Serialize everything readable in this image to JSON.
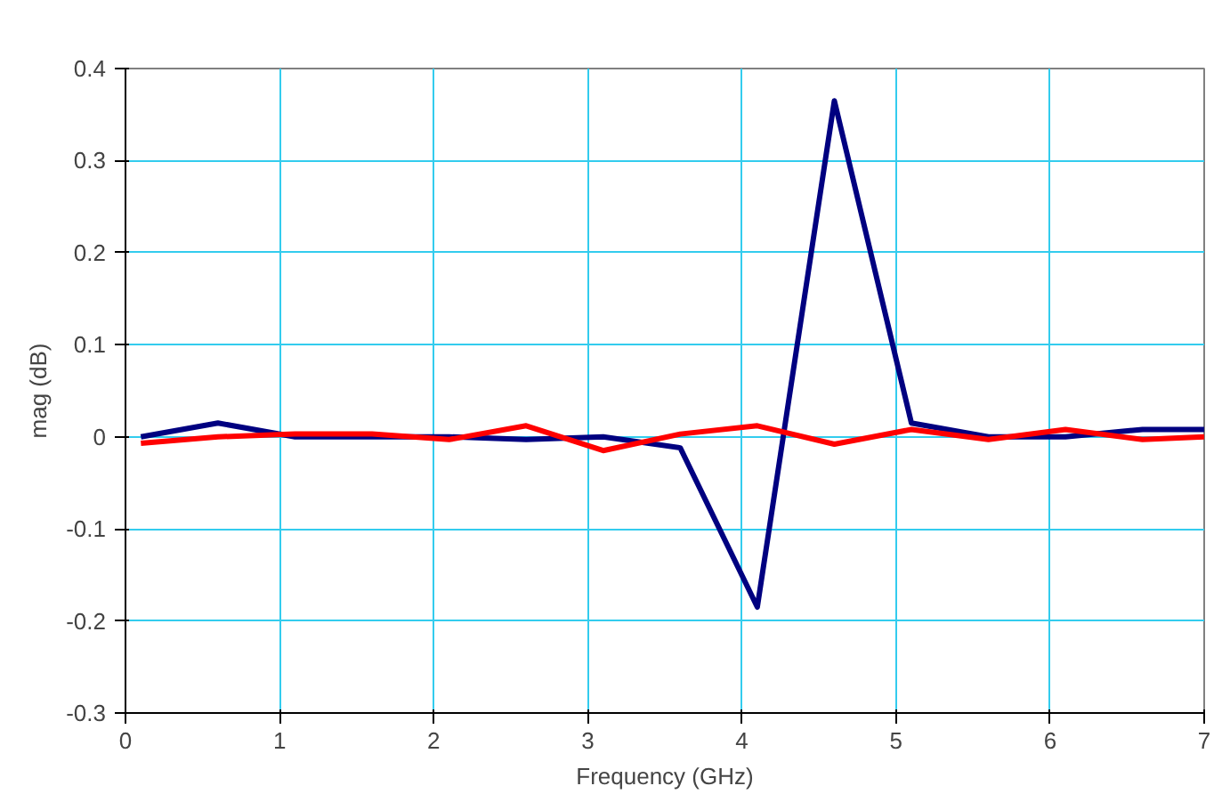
{
  "chart_data": {
    "type": "line",
    "xlabel": "Frequency (GHz)",
    "ylabel": "mag (dB)",
    "x": [
      0.1,
      0.6,
      1.1,
      1.6,
      2.1,
      2.6,
      3.1,
      3.6,
      4.1,
      4.6,
      5.1,
      5.6,
      6.1,
      6.6,
      7.0
    ],
    "series": [
      {
        "color": "#000080",
        "values": [
          0,
          0.015,
          0,
          0,
          0,
          -0.003,
          0,
          -0.012,
          -0.185,
          0.365,
          0.015,
          0,
          0,
          0.008,
          0.008
        ]
      },
      {
        "color": "#ff0000",
        "values": [
          -0.007,
          0,
          0.003,
          0.003,
          -0.003,
          0.012,
          -0.015,
          0.003,
          0.012,
          -0.008,
          0.008,
          -0.003,
          0.008,
          -0.003,
          0
        ]
      }
    ],
    "xlim": [
      0,
      7
    ],
    "ylim": [
      -0.3,
      0.4
    ],
    "xticks": [
      0,
      1,
      2,
      3,
      4,
      5,
      6,
      7
    ],
    "yticks": [
      {
        "value": -0.3,
        "label": "-0.3"
      },
      {
        "value": -0.2,
        "label": "-0.2"
      },
      {
        "value": -0.1,
        "label": "-0.1"
      },
      0,
      {
        "value": 0.1,
        "label": "0.1"
      },
      {
        "value": 0.2,
        "label": "0.2"
      },
      {
        "value": 0.3,
        "label": "0.3"
      },
      {
        "value": 0.4,
        "label": "0.4"
      }
    ],
    "grid": true,
    "marker": "none",
    "line_style": "solid"
  }
}
